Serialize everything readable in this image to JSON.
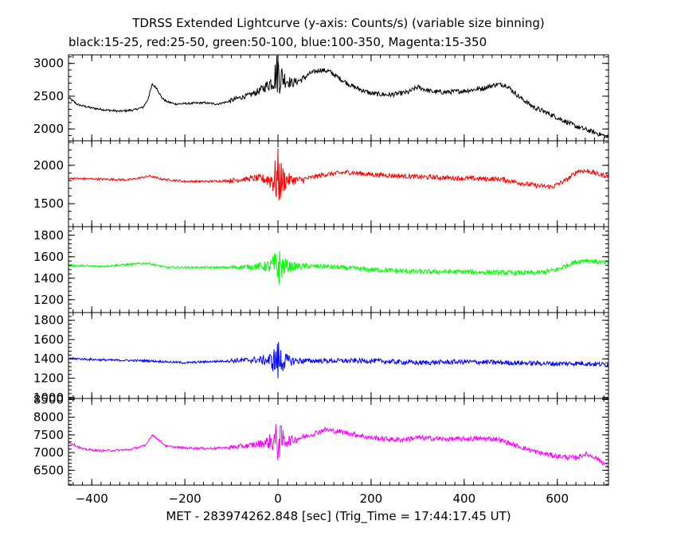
{
  "chart_data": {
    "type": "line",
    "title": "TDRSS Extended Lightcurve (y-axis: Counts/s) (variable size binning)",
    "subtitle": "black:15-25, red:25-50, green:50-100, blue:100-350, Magenta:15-350",
    "xlabel": "MET - 283974262.848 [sec] (Trig_Time = 17:44:17.45 UT)",
    "xlim": [
      -450,
      710
    ],
    "x_ticks": [
      -400,
      -200,
      0,
      200,
      400,
      600
    ],
    "x_tick_labels": [
      "−400",
      "−200",
      "0",
      "200",
      "400",
      "600"
    ],
    "grid": false,
    "panels": [
      {
        "name": "black:15-25",
        "color": "#000000",
        "ylim": [
          1820,
          3130
        ],
        "y_ticks": [
          2000,
          2500,
          3000
        ],
        "profile": [
          [
            -450,
            2480
          ],
          [
            -430,
            2370
          ],
          [
            -400,
            2320
          ],
          [
            -370,
            2290
          ],
          [
            -340,
            2270
          ],
          [
            -310,
            2290
          ],
          [
            -290,
            2330
          ],
          [
            -280,
            2440
          ],
          [
            -270,
            2680
          ],
          [
            -260,
            2620
          ],
          [
            -250,
            2480
          ],
          [
            -240,
            2420
          ],
          [
            -220,
            2380
          ],
          [
            -190,
            2390
          ],
          [
            -160,
            2400
          ],
          [
            -130,
            2380
          ],
          [
            -105,
            2420
          ],
          [
            -90,
            2460
          ],
          [
            -60,
            2520
          ],
          [
            -40,
            2580
          ],
          [
            -20,
            2680
          ],
          [
            -10,
            2760
          ],
          [
            -3,
            2850
          ],
          [
            0,
            2880
          ],
          [
            5,
            2800
          ],
          [
            15,
            2760
          ],
          [
            30,
            2700
          ],
          [
            50,
            2750
          ],
          [
            70,
            2850
          ],
          [
            90,
            2900
          ],
          [
            110,
            2880
          ],
          [
            130,
            2780
          ],
          [
            160,
            2650
          ],
          [
            200,
            2540
          ],
          [
            240,
            2520
          ],
          [
            280,
            2560
          ],
          [
            300,
            2640
          ],
          [
            330,
            2570
          ],
          [
            360,
            2560
          ],
          [
            400,
            2580
          ],
          [
            440,
            2620
          ],
          [
            470,
            2680
          ],
          [
            490,
            2670
          ],
          [
            520,
            2480
          ],
          [
            550,
            2330
          ],
          [
            580,
            2240
          ],
          [
            610,
            2140
          ],
          [
            640,
            2040
          ],
          [
            670,
            1970
          ],
          [
            700,
            1900
          ],
          [
            710,
            1860
          ]
        ],
        "burst_amp": 330
      },
      {
        "name": "red:25-50",
        "color": "#ff0000",
        "ylim": [
          1200,
          2320
        ],
        "y_ticks": [
          1500,
          2000
        ],
        "profile": [
          [
            -450,
            1830
          ],
          [
            -380,
            1820
          ],
          [
            -320,
            1810
          ],
          [
            -275,
            1860
          ],
          [
            -250,
            1820
          ],
          [
            -200,
            1790
          ],
          [
            -150,
            1790
          ],
          [
            -105,
            1800
          ],
          [
            -50,
            1830
          ],
          [
            0,
            1810
          ],
          [
            50,
            1810
          ],
          [
            100,
            1880
          ],
          [
            150,
            1910
          ],
          [
            200,
            1880
          ],
          [
            300,
            1850
          ],
          [
            400,
            1830
          ],
          [
            480,
            1820
          ],
          [
            520,
            1770
          ],
          [
            560,
            1730
          ],
          [
            590,
            1720
          ],
          [
            620,
            1810
          ],
          [
            645,
            1930
          ],
          [
            670,
            1920
          ],
          [
            690,
            1880
          ],
          [
            710,
            1860
          ]
        ],
        "burst_amp": 380
      },
      {
        "name": "green:50-100",
        "color": "#00ff00",
        "ylim": [
          1080,
          1880
        ],
        "y_ticks": [
          1200,
          1400,
          1600,
          1800
        ],
        "profile": [
          [
            -450,
            1520
          ],
          [
            -380,
            1510
          ],
          [
            -280,
            1540
          ],
          [
            -240,
            1500
          ],
          [
            -150,
            1500
          ],
          [
            -105,
            1500
          ],
          [
            -50,
            1510
          ],
          [
            0,
            1510
          ],
          [
            100,
            1510
          ],
          [
            200,
            1480
          ],
          [
            300,
            1460
          ],
          [
            400,
            1460
          ],
          [
            500,
            1450
          ],
          [
            560,
            1450
          ],
          [
            600,
            1480
          ],
          [
            630,
            1540
          ],
          [
            660,
            1570
          ],
          [
            690,
            1550
          ],
          [
            710,
            1540
          ]
        ],
        "burst_amp": 190
      },
      {
        "name": "blue:100-350",
        "color": "#0000ff",
        "ylim": [
          990,
          1880
        ],
        "y_ticks": [
          1000,
          1200,
          1400,
          1600,
          1800
        ],
        "profile": [
          [
            -450,
            1405
          ],
          [
            -380,
            1390
          ],
          [
            -280,
            1380
          ],
          [
            -200,
            1360
          ],
          [
            -105,
            1380
          ],
          [
            -50,
            1390
          ],
          [
            0,
            1380
          ],
          [
            100,
            1380
          ],
          [
            200,
            1380
          ],
          [
            300,
            1360
          ],
          [
            400,
            1370
          ],
          [
            500,
            1360
          ],
          [
            600,
            1350
          ],
          [
            650,
            1355
          ],
          [
            710,
            1340
          ]
        ],
        "burst_amp": 210
      },
      {
        "name": "Magenta:15-350",
        "color": "#ff00ff",
        "ylim": [
          6080,
          8530
        ],
        "y_ticks": [
          6500,
          7000,
          7500,
          8000,
          8500
        ],
        "profile": [
          [
            -450,
            7300
          ],
          [
            -420,
            7100
          ],
          [
            -380,
            7050
          ],
          [
            -320,
            7080
          ],
          [
            -285,
            7200
          ],
          [
            -270,
            7500
          ],
          [
            -255,
            7350
          ],
          [
            -240,
            7180
          ],
          [
            -200,
            7130
          ],
          [
            -150,
            7120
          ],
          [
            -105,
            7140
          ],
          [
            -60,
            7200
          ],
          [
            -20,
            7300
          ],
          [
            0,
            7350
          ],
          [
            30,
            7350
          ],
          [
            70,
            7500
          ],
          [
            100,
            7650
          ],
          [
            140,
            7580
          ],
          [
            200,
            7420
          ],
          [
            260,
            7360
          ],
          [
            300,
            7420
          ],
          [
            360,
            7380
          ],
          [
            420,
            7390
          ],
          [
            470,
            7390
          ],
          [
            510,
            7200
          ],
          [
            560,
            7000
          ],
          [
            600,
            6900
          ],
          [
            640,
            6850
          ],
          [
            660,
            6960
          ],
          [
            680,
            6880
          ],
          [
            700,
            6700
          ],
          [
            710,
            6600
          ]
        ],
        "burst_amp": 600
      }
    ]
  }
}
